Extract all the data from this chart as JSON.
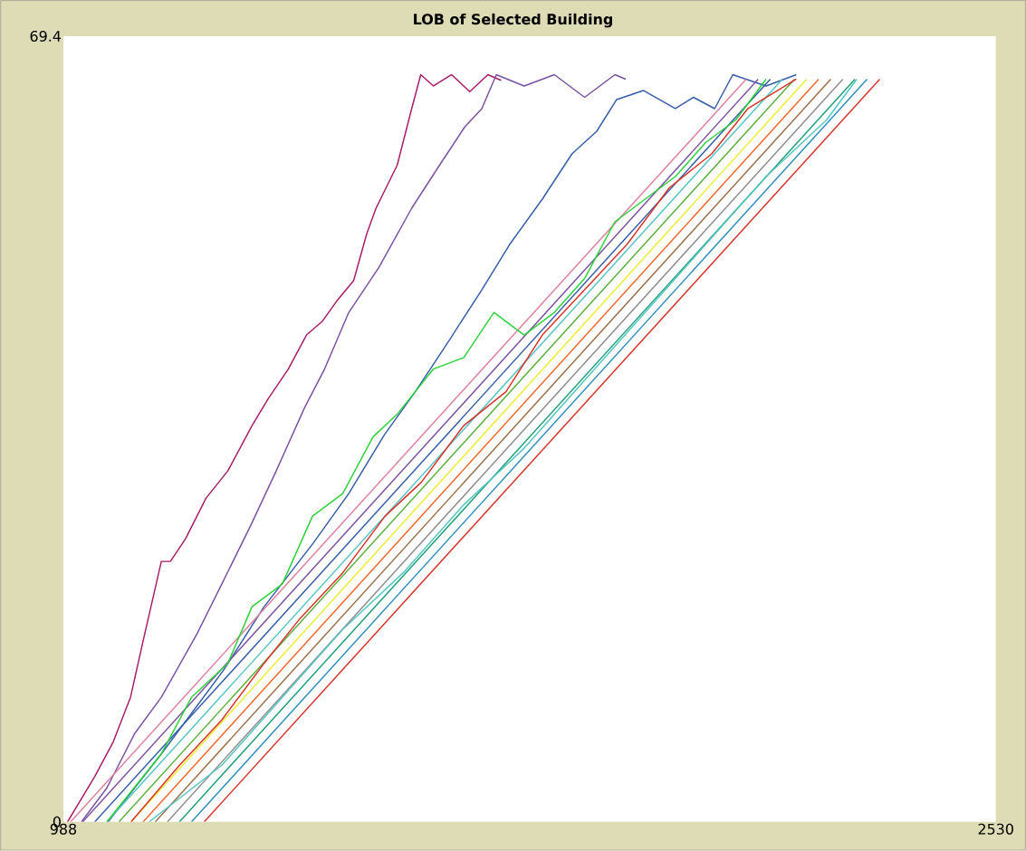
{
  "chart_data": {
    "type": "line",
    "title": "LOB of Selected Building",
    "xlim": [
      988,
      2530
    ],
    "ylim": [
      0,
      69.4
    ],
    "xticks": [
      988,
      2530
    ],
    "yticks": [
      0,
      69.4
    ],
    "marker": "none",
    "line_style": "solid",
    "series": [
      {
        "color": "#a71b6a",
        "x": [
          995,
          1040,
          1070,
          1099,
          1120,
          1150,
          1165,
          1190,
          1224,
          1260,
          1300,
          1327,
          1360,
          1390,
          1416,
          1440,
          1468,
          1490,
          1505,
          1540,
          1564,
          1579,
          1600,
          1630,
          1660,
          1690,
          1712
        ],
        "values": [
          0,
          4,
          7,
          11,
          16,
          23,
          23,
          25,
          28.6,
          31,
          35,
          37.4,
          40,
          43,
          44.2,
          46,
          47.8,
          52,
          54.2,
          58,
          63,
          66,
          65,
          66,
          64.5,
          66,
          65.5
        ]
      },
      {
        "color": "#7c50a4",
        "x": [
          1018,
          1060,
          1106,
          1150,
          1209,
          1250,
          1298,
          1340,
          1387,
          1420,
          1460,
          1510,
          1564,
          1610,
          1652,
          1680,
          1704,
          1750,
          1800,
          1850,
          1900,
          1918
        ],
        "values": [
          0,
          3,
          7.8,
          11,
          16.6,
          21,
          26.2,
          31,
          36.6,
          40,
          45,
          49,
          54.2,
          58,
          61.4,
          63,
          66,
          65,
          66,
          64,
          66,
          65.6
        ]
      },
      {
        "color": "#345da9",
        "x": [
          1062,
          1150,
          1253,
          1320,
          1401,
          1460,
          1519,
          1570,
          1622,
          1680,
          1726,
          1780,
          1829,
          1870,
          1903,
          1947,
          2000,
          2030,
          2065,
          2095,
          2150,
          2200
        ],
        "values": [
          0,
          6,
          13.4,
          19,
          24.6,
          29,
          34.2,
          38,
          42.2,
          47,
          51,
          55,
          59,
          61,
          63.8,
          64.6,
          63,
          64,
          63,
          66,
          65,
          66
        ]
      },
      {
        "color": "#e0809c",
        "x": [
          1000,
          2117
        ],
        "values": [
          0,
          65.6
        ]
      },
      {
        "color": "#7c50a4",
        "x": [
          1020,
          2137
        ],
        "values": [
          0,
          65.6
        ]
      },
      {
        "color": "#345da9",
        "x": [
          1040,
          2157
        ],
        "values": [
          0,
          65.6
        ]
      },
      {
        "color": "#54c4c4",
        "x": [
          1060,
          2177
        ],
        "values": [
          0,
          65.6
        ]
      },
      {
        "color": "#59b03c",
        "x": [
          1080,
          2197
        ],
        "values": [
          0,
          65.6
        ]
      },
      {
        "color": "#eded31",
        "x": [
          1100,
          2217
        ],
        "values": [
          0,
          65.6
        ]
      },
      {
        "color": "#f1692b",
        "x": [
          1120,
          2237
        ],
        "values": [
          0,
          65.6
        ]
      },
      {
        "color": "#9d6e48",
        "x": [
          1140,
          2257
        ],
        "values": [
          0,
          65.6
        ]
      },
      {
        "color": "#8d8d8d",
        "x": [
          1160,
          2277
        ],
        "values": [
          0,
          65.6
        ]
      },
      {
        "color": "#1d9f78",
        "x": [
          1180,
          2297
        ],
        "values": [
          0,
          65.6
        ]
      },
      {
        "color": "#2d8dbe",
        "x": [
          1200,
          2317
        ],
        "values": [
          0,
          65.6
        ]
      },
      {
        "color": "#d73229",
        "x": [
          1221,
          2338
        ],
        "values": [
          0,
          65.6
        ]
      },
      {
        "color": "#2cd13b",
        "x": [
          1060,
          1150,
          1200,
          1260,
          1300,
          1350,
          1400,
          1450,
          1500,
          1540,
          1600,
          1650,
          1700,
          1750,
          1800,
          1850,
          1900,
          1950,
          2000,
          2050,
          2100,
          2150
        ],
        "values": [
          0,
          6,
          11,
          14,
          19,
          21,
          27,
          29,
          34,
          36,
          40,
          41,
          45,
          43,
          45,
          48,
          53,
          55,
          57,
          60,
          62,
          65.6
        ]
      },
      {
        "color": "#d73229",
        "x": [
          1100,
          1180,
          1250,
          1320,
          1380,
          1450,
          1520,
          1580,
          1650,
          1720,
          1780,
          1850,
          1920,
          1990,
          2060,
          2120,
          2200
        ],
        "values": [
          0,
          5,
          9,
          14,
          18,
          22,
          27,
          30,
          35,
          38,
          43,
          47,
          51,
          56,
          59,
          63,
          65.6
        ]
      },
      {
        "color": "#54c4c4",
        "x": [
          1130,
          1250,
          1350,
          1450,
          1550,
          1650,
          1750,
          1850,
          1950,
          2050,
          2150,
          2250,
          2300
        ],
        "values": [
          0,
          5,
          11,
          17,
          22,
          28,
          33,
          39,
          45,
          51,
          57,
          62,
          65.6
        ]
      }
    ]
  }
}
